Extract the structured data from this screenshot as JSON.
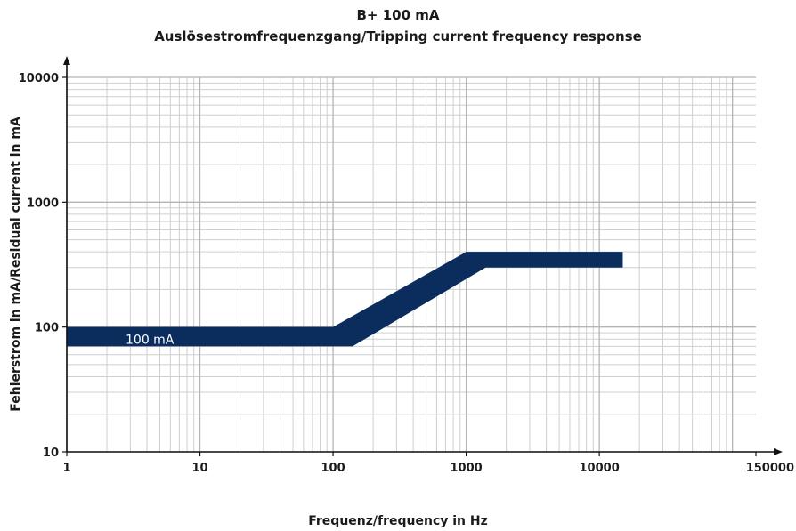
{
  "chart_data": {
    "type": "area",
    "title": "B+ 100 mA",
    "subtitle": "Auslösestromfrequenzgang/Tripping current frequency response",
    "xlabel": "Frequenz/frequency in Hz",
    "ylabel": "Fehlerstrom in mA/Residual current in mA",
    "x_scale": "log",
    "y_scale": "log",
    "xlim": [
      1,
      150000
    ],
    "ylim": [
      10,
      10000
    ],
    "x_ticks": [
      "1",
      "10",
      "100",
      "1000",
      "10000",
      "150000"
    ],
    "y_ticks": [
      "10",
      "100",
      "1000",
      "10000"
    ],
    "grid": true,
    "band_color": "#0b2d5e",
    "annotation": "100 mA",
    "series": [
      {
        "upper": {
          "x": [
            1,
            100,
            1000,
            15000
          ],
          "y": [
            100,
            100,
            400,
            400
          ]
        },
        "lower": {
          "x": [
            1,
            140,
            1400,
            15000
          ],
          "y": [
            70,
            70,
            300,
            300
          ]
        }
      }
    ]
  }
}
